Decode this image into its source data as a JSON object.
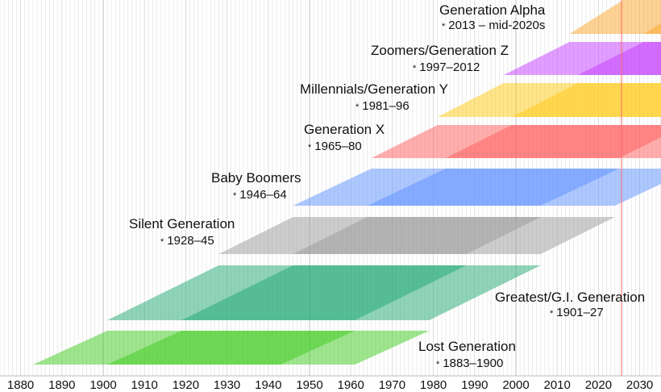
{
  "axis": {
    "ticks": [
      "1880",
      "1890",
      "1900",
      "1910",
      "1920",
      "1930",
      "1940",
      "1950",
      "1960",
      "1970",
      "1980",
      "1990",
      "2000",
      "2010",
      "2020",
      "2030"
    ],
    "range": [
      1875,
      2035
    ],
    "marker_year": 2025,
    "marker_color": "#ff6666"
  },
  "birth_symbol": "*",
  "generations": [
    {
      "name": "Generation Alpha",
      "years": "2013 – mid-2020s",
      "start": 2013,
      "end": 2025,
      "color": "#fca52a"
    },
    {
      "name": "Zoomers/Generation Z",
      "years": "1997–2012",
      "start": 1997,
      "end": 2012,
      "color": "#c43cff"
    },
    {
      "name": "Millennials/Generation Y",
      "years": "1981–96",
      "start": 1981,
      "end": 1996,
      "color": "#ffc914"
    },
    {
      "name": "Generation X",
      "years": "1965–80",
      "start": 1965,
      "end": 1980,
      "color": "#ff5c5c"
    },
    {
      "name": "Baby Boomers",
      "years": "1946–64",
      "start": 1946,
      "end": 1964,
      "color": "#5c8fff"
    },
    {
      "name": "Silent Generation",
      "years": "1928–45",
      "start": 1928,
      "end": 1945,
      "color": "#999999"
    },
    {
      "name": "Greatest/G.I. Generation",
      "years": "1901–27",
      "start": 1901,
      "end": 1927,
      "color": "#1fa874"
    },
    {
      "name": "Lost Generation",
      "years": "1883–1900",
      "start": 1883,
      "end": 1900,
      "color": "#3ecc1e"
    }
  ]
}
